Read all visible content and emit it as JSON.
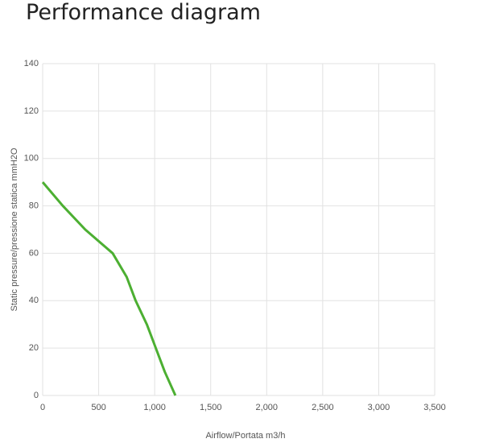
{
  "chart_data": {
    "type": "line",
    "title": "Performance diagram",
    "x_label": "Airflow/Portata m3/h",
    "y_label": "Static pressure/pressione statica mmH2O",
    "x": [
      0,
      180,
      380,
      625,
      750,
      830,
      930,
      1010,
      1090,
      1185
    ],
    "series": [
      {
        "name": "Performance",
        "color": "#4caf32",
        "values": [
          90,
          80,
          70,
          60,
          50,
          40,
          30,
          20,
          10,
          0
        ]
      }
    ],
    "xlim": [
      0,
      3500
    ],
    "xticks": [
      0,
      500,
      {
        "value": 1000,
        "label": "1,000"
      },
      {
        "value": 1500,
        "label": "1,500"
      },
      {
        "value": 2000,
        "label": "2,000"
      },
      {
        "value": 2500,
        "label": "2,500"
      },
      {
        "value": 3000,
        "label": "3,000"
      },
      {
        "value": 3500,
        "label": "3,500"
      }
    ],
    "ylim": [
      0,
      140
    ],
    "yticks": [
      0,
      20,
      40,
      60,
      80,
      100,
      120,
      140
    ],
    "grid": true
  }
}
